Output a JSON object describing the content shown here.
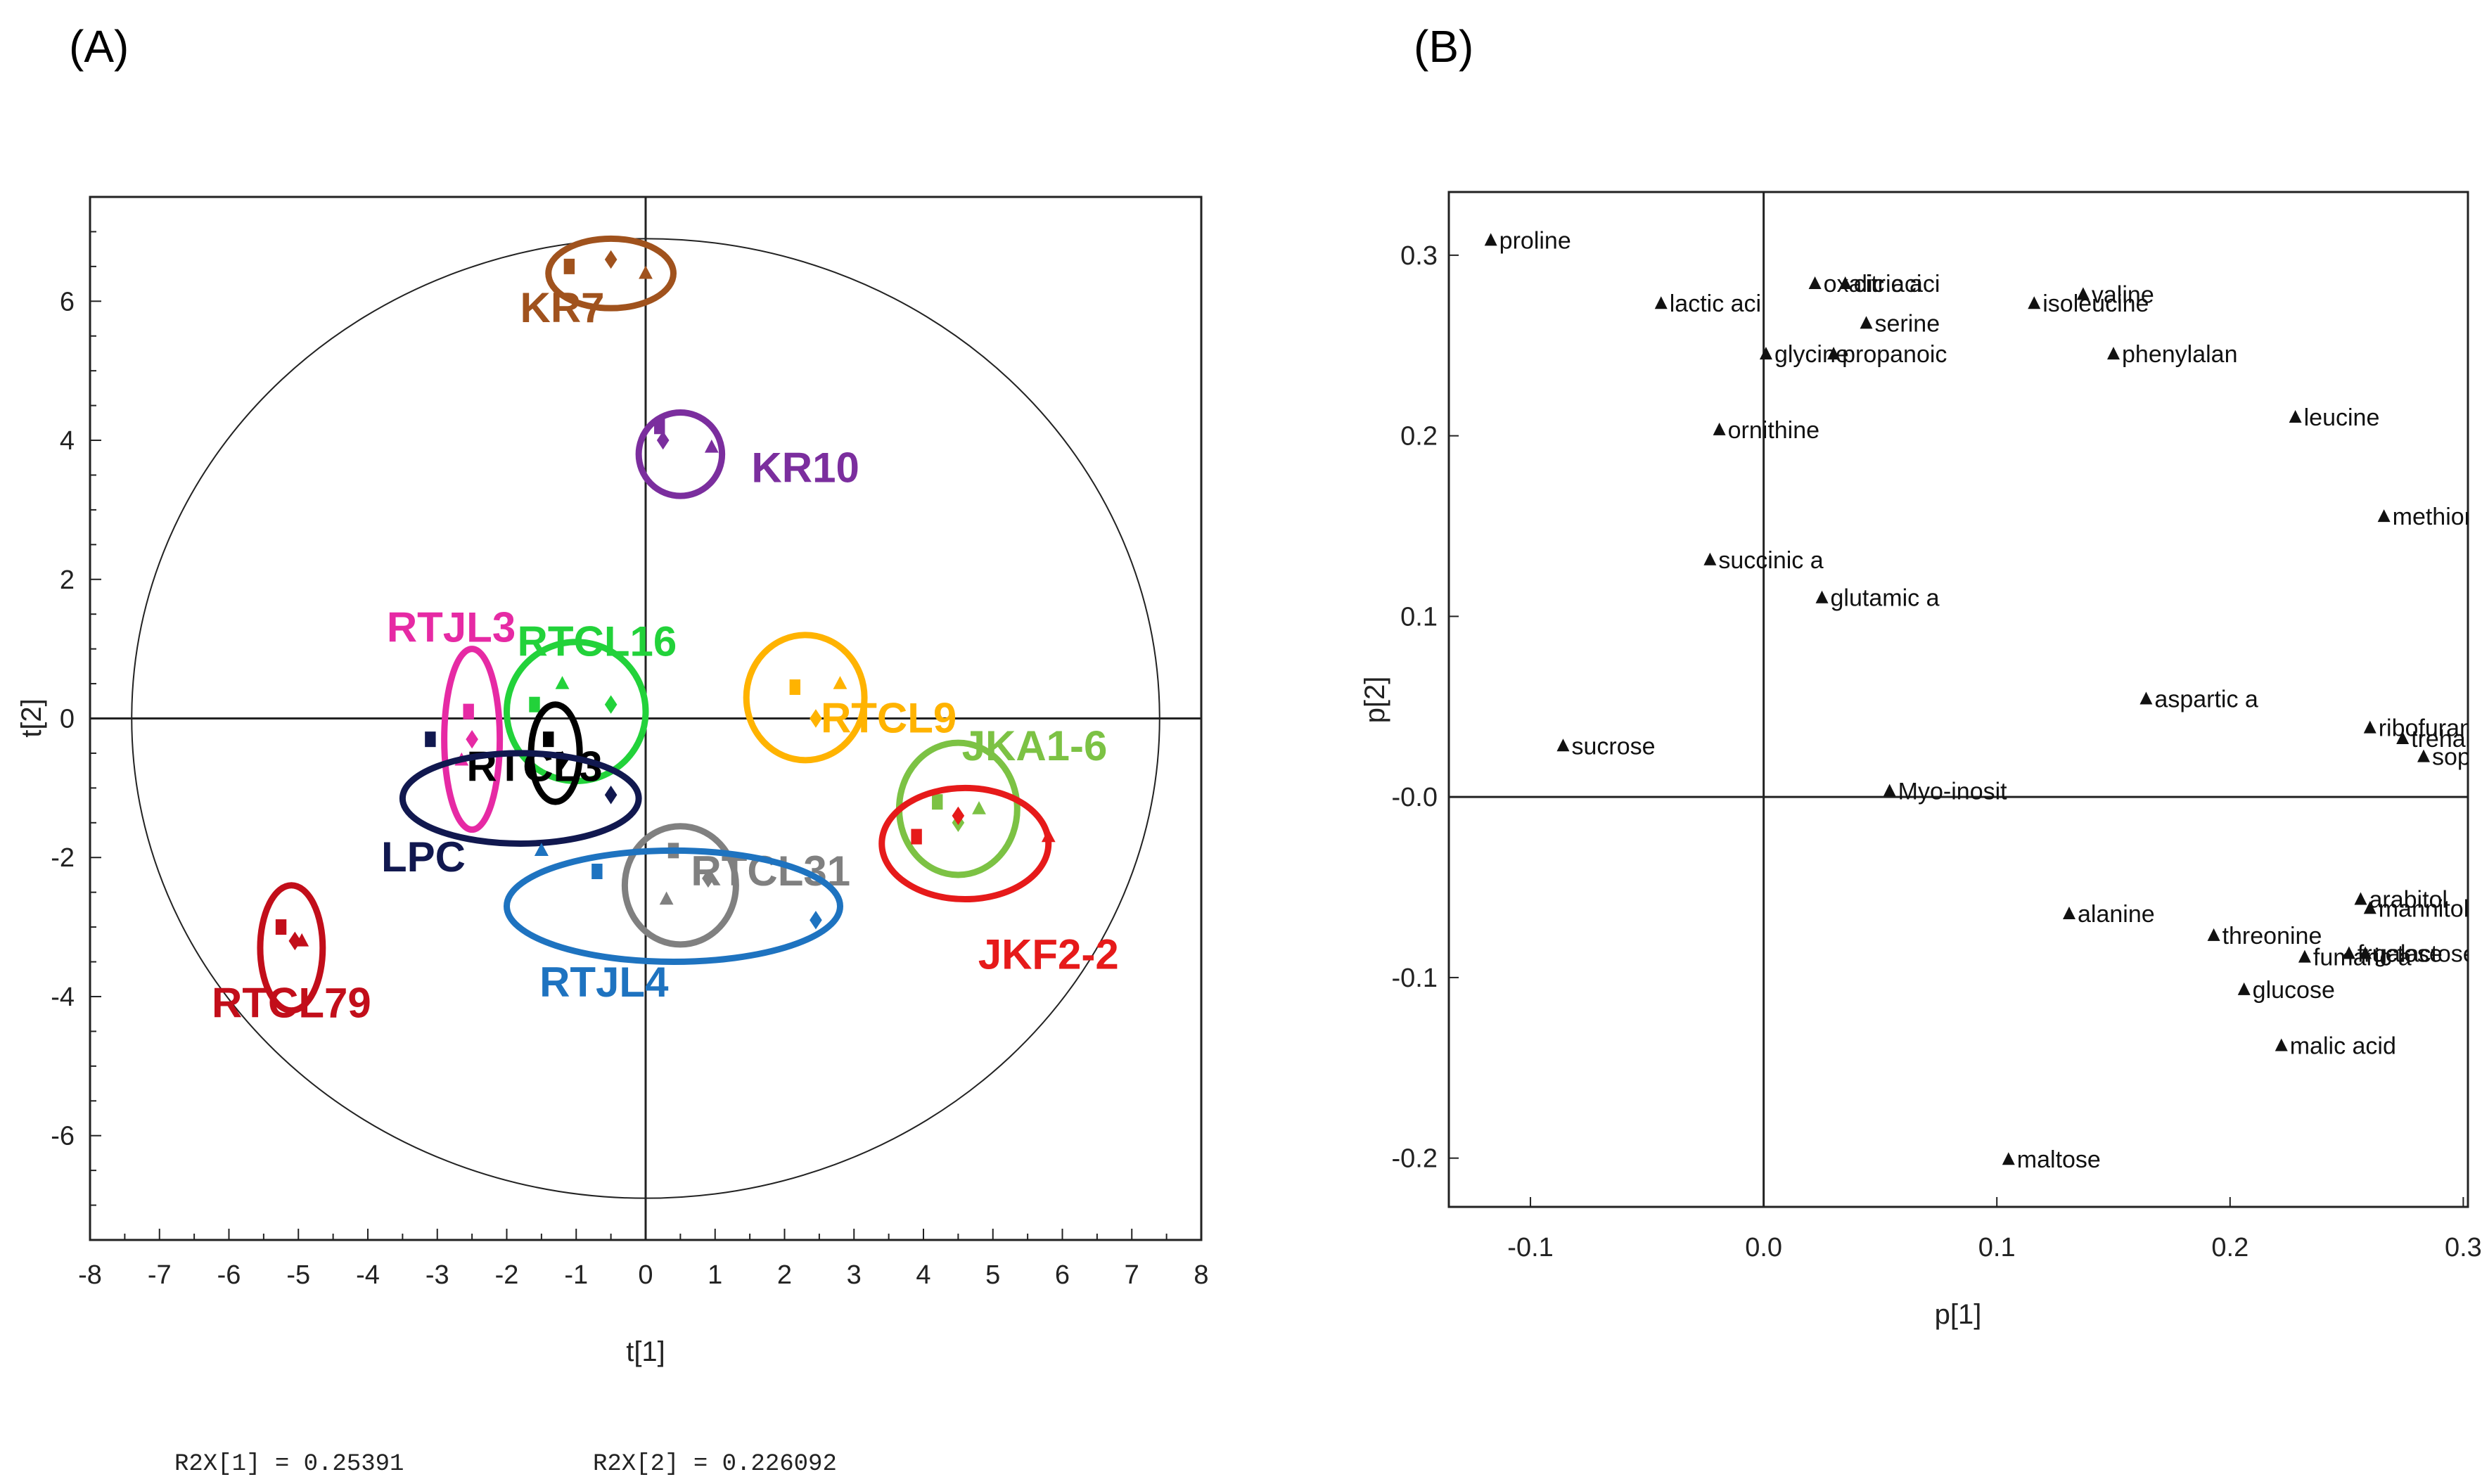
{
  "chart_data": [
    {
      "panel": "(A)",
      "type": "scatter",
      "xlabel": "t[1]",
      "ylabel": "t[2]",
      "xlim": [
        -8,
        8
      ],
      "ylim": [
        -7.5,
        7.5
      ],
      "xticks": [
        -8,
        -7,
        -6,
        -5,
        -4,
        -3,
        -2,
        -1,
        0,
        1,
        2,
        3,
        4,
        5,
        6,
        7,
        8
      ],
      "yticks": [
        -6,
        -4,
        -2,
        0,
        2,
        4,
        6
      ],
      "hotelling_ellipse": {
        "rx": 7.4,
        "ry": 6.9
      },
      "r2x": [
        "R2X[1] = 0.25391",
        "R2X[2] = 0.226092"
      ],
      "groups": [
        {
          "name": "KR7",
          "color": "#A0521D",
          "label_at": [
            -1.2,
            5.7
          ],
          "ellipse": {
            "cx": -0.5,
            "cy": 6.4,
            "rx": 0.9,
            "ry": 0.5
          },
          "points": [
            [
              -1.1,
              6.5
            ],
            [
              -0.5,
              6.6
            ],
            [
              0.0,
              6.4
            ]
          ]
        },
        {
          "name": "KR10",
          "color": "#7B2E9E",
          "label_at": [
            2.3,
            3.4
          ],
          "ellipse": {
            "cx": 0.5,
            "cy": 3.8,
            "rx": 0.6,
            "ry": 0.6
          },
          "points": [
            [
              0.2,
              4.2
            ],
            [
              0.25,
              4.0
            ],
            [
              0.95,
              3.9
            ]
          ]
        },
        {
          "name": "RTJL3",
          "color": "#E62AA4",
          "label_at": [
            -2.8,
            1.1
          ],
          "ellipse": {
            "cx": -2.5,
            "cy": -0.3,
            "rx": 0.4,
            "ry": 1.3
          },
          "points": [
            [
              -2.55,
              0.1
            ],
            [
              -2.5,
              -0.3
            ],
            [
              -2.65,
              -0.6
            ]
          ]
        },
        {
          "name": "RTCL16",
          "color": "#22D23A",
          "label_at": [
            -0.7,
            0.9
          ],
          "ellipse": {
            "cx": -1.0,
            "cy": 0.1,
            "rx": 1.0,
            "ry": 1.0
          },
          "points": [
            [
              -1.6,
              0.2
            ],
            [
              -0.5,
              0.2
            ],
            [
              -1.2,
              0.5
            ]
          ]
        },
        {
          "name": "RTCL3",
          "color": "#000000",
          "label_at": [
            -1.6,
            -0.9
          ],
          "ellipse": {
            "cx": -1.3,
            "cy": -0.5,
            "rx": 0.35,
            "ry": 0.7
          },
          "points": [
            [
              -1.4,
              -0.3
            ],
            [
              -1.2,
              -0.6
            ]
          ]
        },
        {
          "name": "RTCL9",
          "color": "#FFB300",
          "label_at": [
            3.5,
            -0.2
          ],
          "ellipse": {
            "cx": 2.3,
            "cy": 0.3,
            "rx": 0.85,
            "ry": 0.9
          },
          "points": [
            [
              2.15,
              0.45
            ],
            [
              2.45,
              0.0
            ],
            [
              2.8,
              0.5
            ]
          ]
        },
        {
          "name": "JKA1-6",
          "color": "#7CC244",
          "label_at": [
            5.6,
            -0.6
          ],
          "ellipse": {
            "cx": 4.5,
            "cy": -1.3,
            "rx": 0.85,
            "ry": 0.95
          },
          "points": [
            [
              4.2,
              -1.2
            ],
            [
              4.5,
              -1.5
            ],
            [
              4.8,
              -1.3
            ]
          ]
        },
        {
          "name": "JKF2-2",
          "color": "#E61A1A",
          "label_at": [
            5.8,
            -3.6
          ],
          "ellipse": {
            "cx": 4.6,
            "cy": -1.8,
            "rx": 1.2,
            "ry": 0.8
          },
          "points": [
            [
              3.9,
              -1.7
            ],
            [
              4.5,
              -1.4
            ],
            [
              5.8,
              -1.7
            ]
          ]
        },
        {
          "name": "LPC",
          "color": "#11184F",
          "label_at": [
            -3.2,
            -2.2
          ],
          "ellipse": {
            "cx": -1.8,
            "cy": -1.15,
            "rx": 1.7,
            "ry": 0.65
          },
          "points": [
            [
              -3.1,
              -0.3
            ],
            [
              -0.5,
              -1.1
            ],
            [
              -1.5,
              -1.9
            ]
          ]
        },
        {
          "name": "RTCL31",
          "color": "#808080",
          "label_at": [
            1.8,
            -2.4
          ],
          "ellipse": {
            "cx": 0.5,
            "cy": -2.4,
            "rx": 0.8,
            "ry": 0.85
          },
          "points": [
            [
              0.4,
              -1.9
            ],
            [
              0.9,
              -2.3
            ],
            [
              0.3,
              -2.6
            ]
          ]
        },
        {
          "name": "RTJL4",
          "color": "#1E73C0",
          "label_at": [
            -0.6,
            -4.0
          ],
          "ellipse": {
            "cx": 0.4,
            "cy": -2.7,
            "rx": 2.4,
            "ry": 0.8
          },
          "points": [
            [
              -0.7,
              -2.2
            ],
            [
              2.45,
              -2.9
            ],
            [
              -1.5,
              -1.9
            ]
          ]
        },
        {
          "name": "RTCL79",
          "color": "#C20E1A",
          "label_at": [
            -5.1,
            -4.3
          ],
          "ellipse": {
            "cx": -5.1,
            "cy": -3.3,
            "rx": 0.45,
            "ry": 0.9
          },
          "points": [
            [
              -5.25,
              -3.0
            ],
            [
              -5.05,
              -3.2
            ],
            [
              -4.95,
              -3.2
            ]
          ]
        }
      ]
    },
    {
      "panel": "(B)",
      "type": "scatter",
      "xlabel": "p[1]",
      "ylabel": "p[2]",
      "xlim": [
        -0.135,
        0.302
      ],
      "ylim": [
        -0.227,
        0.335
      ],
      "xticks": [
        -0.1,
        0.0,
        0.1,
        0.2,
        0.3
      ],
      "xtick_labels": [
        "-0.1",
        "0.0",
        "0.1",
        "0.2",
        "0.3"
      ],
      "yticks": [
        -0.2,
        -0.1,
        0.0,
        0.1,
        0.2,
        0.3
      ],
      "ytick_labels": [
        "-0.2",
        "-0.1",
        "-0.0",
        "0.1",
        "0.2",
        "0.3"
      ],
      "points": [
        {
          "label": "proline",
          "x": -0.117,
          "y": 0.308
        },
        {
          "label": "lactic aci",
          "x": -0.044,
          "y": 0.273
        },
        {
          "label": "oxalic aci",
          "x": 0.022,
          "y": 0.284
        },
        {
          "label": "citric aci",
          "x": 0.035,
          "y": 0.284
        },
        {
          "label": "serine",
          "x": 0.044,
          "y": 0.262
        },
        {
          "label": "glycine",
          "x": 0.001,
          "y": 0.245
        },
        {
          "label": "propanoic",
          "x": 0.03,
          "y": 0.245
        },
        {
          "label": "valine",
          "x": 0.137,
          "y": 0.278
        },
        {
          "label": "isoleucine",
          "x": 0.116,
          "y": 0.273
        },
        {
          "label": "phenylalan",
          "x": 0.15,
          "y": 0.245
        },
        {
          "label": "ornithine",
          "x": -0.019,
          "y": 0.203
        },
        {
          "label": "leucine",
          "x": 0.228,
          "y": 0.21
        },
        {
          "label": "methionine",
          "x": 0.266,
          "y": 0.155
        },
        {
          "label": "succinic a",
          "x": -0.023,
          "y": 0.131
        },
        {
          "label": "glutamic a",
          "x": 0.025,
          "y": 0.11
        },
        {
          "label": "aspartic a",
          "x": 0.164,
          "y": 0.054
        },
        {
          "label": "ribofurano",
          "x": 0.26,
          "y": 0.038
        },
        {
          "label": "trehalose",
          "x": 0.274,
          "y": 0.032
        },
        {
          "label": "sophorose",
          "x": 0.283,
          "y": 0.022
        },
        {
          "label": "sucrose",
          "x": -0.086,
          "y": 0.028
        },
        {
          "label": "Myo-inosit",
          "x": 0.054,
          "y": 0.003
        },
        {
          "label": "alanine",
          "x": 0.131,
          "y": -0.065
        },
        {
          "label": "threonine",
          "x": 0.193,
          "y": -0.077
        },
        {
          "label": "arabitol",
          "x": 0.256,
          "y": -0.057
        },
        {
          "label": "mannitol",
          "x": 0.26,
          "y": -0.062
        },
        {
          "label": "fumaric a",
          "x": 0.232,
          "y": -0.089
        },
        {
          "label": "fructose",
          "x": 0.251,
          "y": -0.087
        },
        {
          "label": "galactose",
          "x": 0.258,
          "y": -0.087
        },
        {
          "label": "glucose",
          "x": 0.206,
          "y": -0.107
        },
        {
          "label": "malic acid",
          "x": 0.222,
          "y": -0.138
        },
        {
          "label": "maltose",
          "x": 0.105,
          "y": -0.201
        }
      ]
    }
  ]
}
